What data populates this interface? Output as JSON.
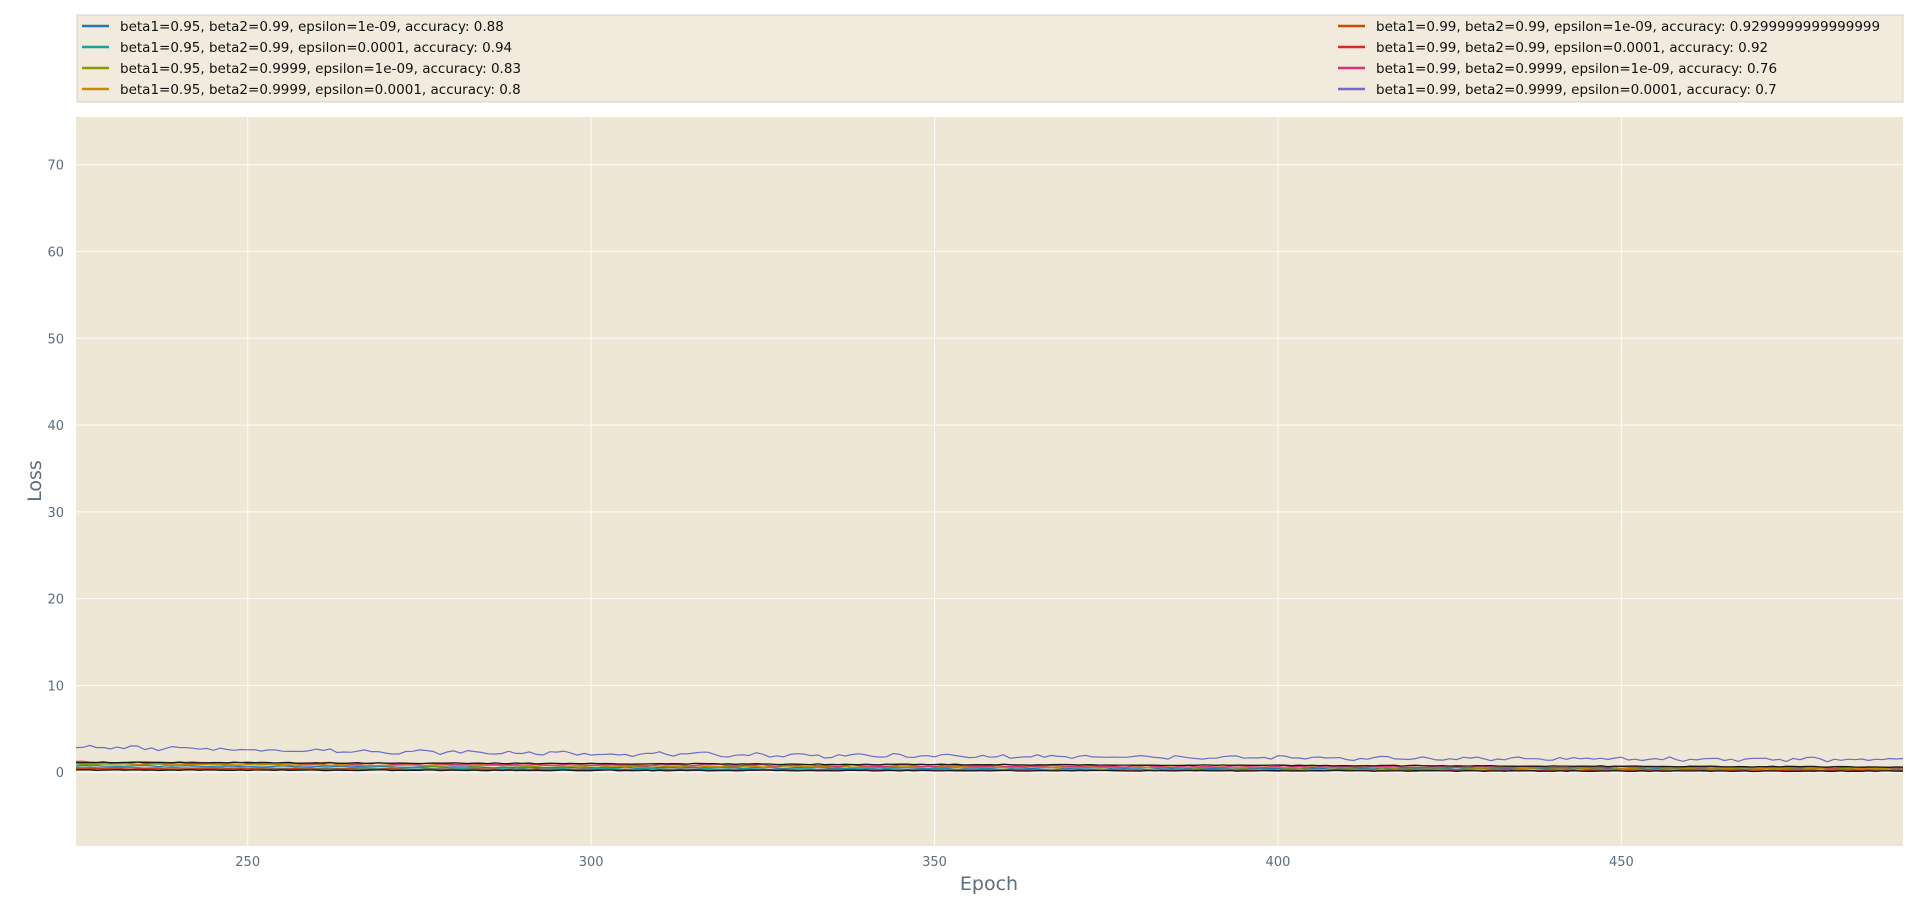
{
  "chart_data": {
    "type": "line",
    "title": "",
    "xlabel": "Epoch",
    "ylabel": "Loss",
    "xlim": [
      225,
      491
    ],
    "ylim": [
      -8.5,
      75.5
    ],
    "xticks": [
      250,
      300,
      350,
      400,
      450
    ],
    "yticks": [
      0,
      10,
      20,
      30,
      40,
      50,
      60,
      70
    ],
    "grid": true,
    "legend_position": "top",
    "background": "#efe7d6",
    "legend_background": "#f2eadd",
    "series": [
      {
        "name": "beta1=0.95, beta2=0.99, epsilon=1e-09, accuracy: 0.88",
        "color": "#1f78c1",
        "start": 0.75,
        "end": 0.38
      },
      {
        "name": "beta1=0.95, beta2=0.99, epsilon=0.0001, accuracy: 0.94",
        "color": "#1aa39a",
        "start": 0.55,
        "end": 0.25
      },
      {
        "name": "beta1=0.95, beta2=0.9999, epsilon=1e-09, accuracy: 0.83",
        "color": "#8a9a00",
        "start": 0.95,
        "end": 0.45
      },
      {
        "name": "beta1=0.95, beta2=0.9999, epsilon=0.0001, accuracy: 0.8",
        "color": "#c98a00",
        "start": 1.05,
        "end": 0.5
      },
      {
        "name": "beta1=0.99, beta2=0.99, epsilon=1e-09, accuracy: 0.9299999999999999",
        "color": "#c84a0a",
        "start": 0.45,
        "end": 0.2
      },
      {
        "name": "beta1=0.99, beta2=0.99, epsilon=0.0001, accuracy: 0.92",
        "color": "#d42a2a",
        "start": 0.35,
        "end": 0.15
      },
      {
        "name": "beta1=0.99, beta2=0.9999, epsilon=1e-09, accuracy: 0.76",
        "color": "#d6337a",
        "start": 1.2,
        "end": 0.55
      },
      {
        "name": "beta1=0.99, beta2=0.9999, epsilon=0.0001, accuracy: 0.7",
        "color": "#6c6cc9",
        "start": 2.9,
        "end": 1.45
      }
    ]
  }
}
